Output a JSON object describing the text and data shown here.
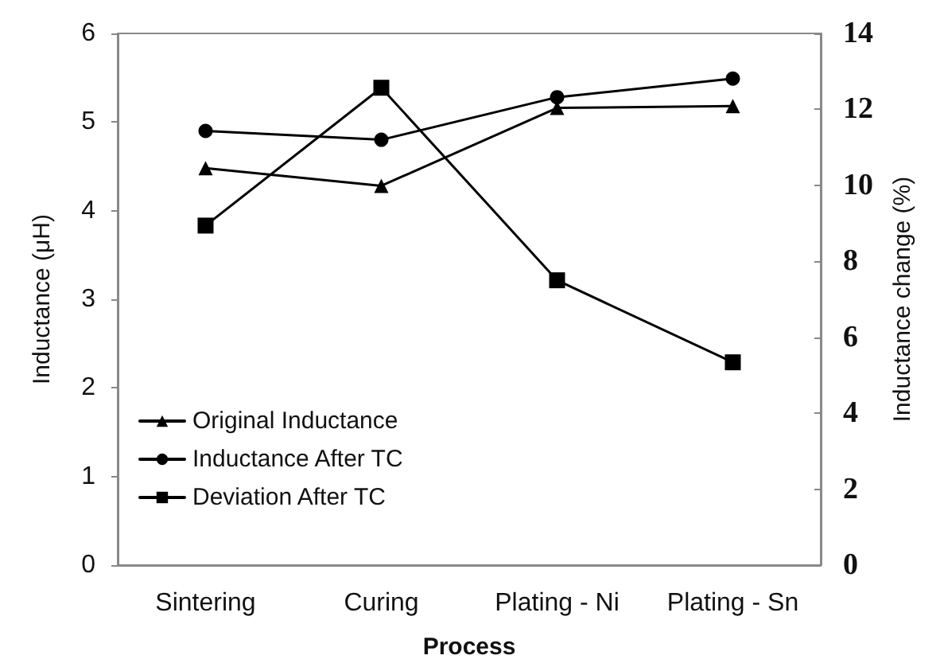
{
  "chart_data": {
    "type": "line",
    "xlabel": "Process",
    "ylabel": "Inductance (μH)",
    "y2label": "Inductance change (%)",
    "categories": [
      "Sintering",
      "Curing",
      "Plating - Ni",
      "Plating - Sn"
    ],
    "series": [
      {
        "name": "Original Inductance",
        "color": "#000000",
        "marker": "triangle",
        "values": [
          4.48,
          4.28,
          5.16,
          5.18
        ]
      },
      {
        "name": "Inductance After TC",
        "color": "#000000",
        "marker": "circle",
        "values": [
          4.9,
          4.8,
          5.28,
          5.49
        ]
      },
      {
        "name": "Deviation After TC",
        "color": "#000000",
        "marker": "square",
        "axis": "y2",
        "values": [
          8.94,
          12.57,
          7.5,
          5.34
        ]
      }
    ],
    "ylim": [
      0,
      6
    ],
    "yticks": [
      0,
      1,
      2,
      3,
      4,
      5,
      6
    ],
    "y2lim": [
      0,
      14
    ],
    "y2ticks": [
      0,
      2,
      4,
      6,
      8,
      10,
      12,
      14
    ],
    "grid": false,
    "legend": "bottom left",
    "line_style": "solid"
  }
}
